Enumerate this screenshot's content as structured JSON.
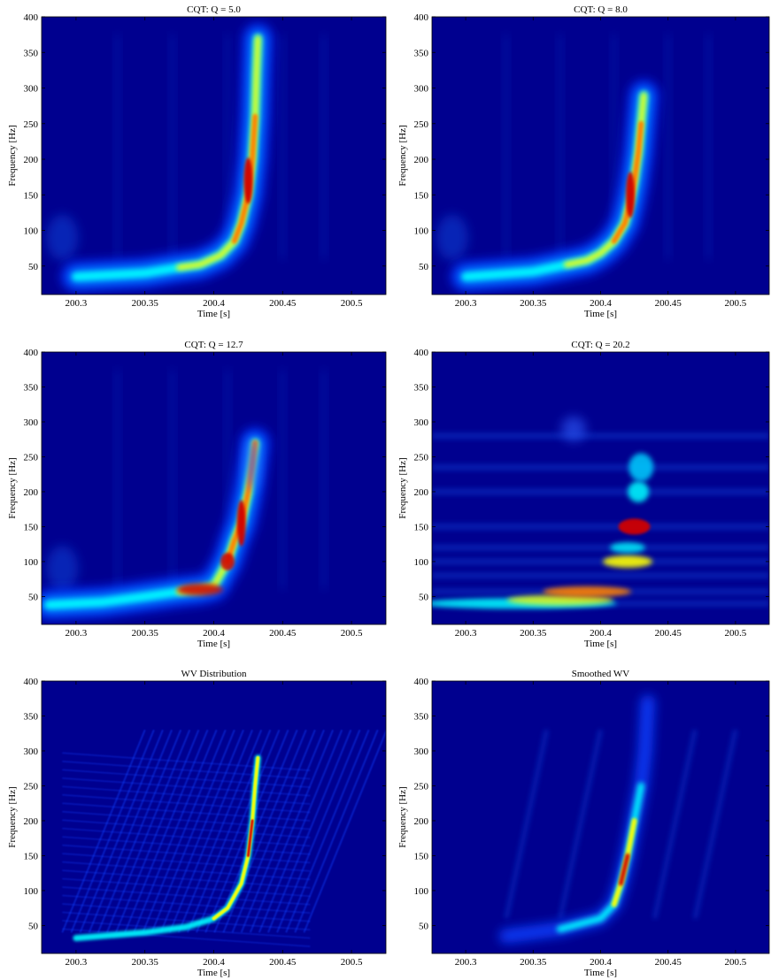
{
  "figure": {
    "xlabel": "Time [s]",
    "ylabel": "Frequency [Hz]"
  },
  "colors": {
    "colormap": "jet",
    "background": "#00008f",
    "axis": "#000000"
  },
  "chart_data": [
    {
      "type": "heatmap",
      "title": "CQT: Q = 5.0",
      "xlabel": "Time [s]",
      "ylabel": "Frequency [Hz]",
      "xlim": [
        200.275,
        200.525
      ],
      "ylim": [
        10,
        400
      ],
      "xticks": [
        200.3,
        200.35,
        200.4,
        200.45,
        200.5
      ],
      "yticks": [
        50,
        100,
        150,
        200,
        250,
        300,
        350,
        400
      ],
      "ridge": [
        [
          200.3,
          35
        ],
        [
          200.35,
          40
        ],
        [
          200.375,
          48
        ],
        [
          200.39,
          52
        ],
        [
          200.405,
          65
        ],
        [
          200.415,
          85
        ],
        [
          200.42,
          110
        ],
        [
          200.425,
          150
        ],
        [
          200.428,
          200
        ],
        [
          200.43,
          260
        ],
        [
          200.431,
          320
        ],
        [
          200.432,
          370
        ]
      ],
      "peak": {
        "time": 200.425,
        "frequency": 170
      }
    },
    {
      "type": "heatmap",
      "title": "CQT: Q = 8.0",
      "xlabel": "Time [s]",
      "ylabel": "Frequency [Hz]",
      "xlim": [
        200.275,
        200.525
      ],
      "ylim": [
        10,
        400
      ],
      "xticks": [
        200.3,
        200.35,
        200.4,
        200.45,
        200.5
      ],
      "yticks": [
        50,
        100,
        150,
        200,
        250,
        300,
        350,
        400
      ],
      "ridge": [
        [
          200.3,
          35
        ],
        [
          200.35,
          42
        ],
        [
          200.375,
          52
        ],
        [
          200.39,
          58
        ],
        [
          200.4,
          68
        ],
        [
          200.41,
          85
        ],
        [
          200.418,
          110
        ],
        [
          200.422,
          140
        ],
        [
          200.425,
          170
        ],
        [
          200.428,
          210
        ],
        [
          200.43,
          250
        ],
        [
          200.432,
          290
        ]
      ],
      "peak": {
        "time": 200.422,
        "frequency": 150
      }
    },
    {
      "type": "heatmap",
      "title": "CQT: Q = 12.7",
      "xlabel": "Time [s]",
      "ylabel": "Frequency [Hz]",
      "xlim": [
        200.275,
        200.525
      ],
      "ylim": [
        10,
        400
      ],
      "xticks": [
        200.3,
        200.35,
        200.4,
        200.45,
        200.5
      ],
      "yticks": [
        50,
        100,
        150,
        200,
        250,
        300,
        350,
        400
      ],
      "ridge": [
        [
          200.28,
          38
        ],
        [
          200.32,
          42
        ],
        [
          200.35,
          50
        ],
        [
          200.375,
          57
        ],
        [
          200.39,
          60
        ],
        [
          200.4,
          65
        ],
        [
          200.41,
          100
        ],
        [
          200.415,
          130
        ],
        [
          200.42,
          155
        ],
        [
          200.425,
          200
        ],
        [
          200.428,
          240
        ],
        [
          200.43,
          270
        ]
      ],
      "peak": {
        "time": 200.42,
        "frequency": 155
      }
    },
    {
      "type": "heatmap",
      "title": "CQT: Q = 20.2",
      "xlabel": "Time [s]",
      "ylabel": "Frequency [Hz]",
      "xlim": [
        200.275,
        200.525
      ],
      "ylim": [
        10,
        400
      ],
      "xticks": [
        200.3,
        200.35,
        200.4,
        200.45,
        200.5
      ],
      "yticks": [
        50,
        100,
        150,
        200,
        250,
        300,
        350,
        400
      ],
      "bands": [
        [
          200.39,
          57
        ],
        [
          200.42,
          100
        ],
        [
          200.425,
          150
        ],
        [
          200.428,
          200
        ],
        [
          200.43,
          235
        ]
      ],
      "peak": {
        "time": 200.425,
        "frequency": 150
      }
    },
    {
      "type": "heatmap",
      "title": "WV Distribution",
      "xlabel": "Time [s]",
      "ylabel": "Frequency [Hz]",
      "xlim": [
        200.275,
        200.525
      ],
      "ylim": [
        10,
        400
      ],
      "xticks": [
        200.3,
        200.35,
        200.4,
        200.45,
        200.5
      ],
      "yticks": [
        50,
        100,
        150,
        200,
        250,
        300,
        350,
        400
      ],
      "ridge": [
        [
          200.3,
          32
        ],
        [
          200.35,
          40
        ],
        [
          200.38,
          48
        ],
        [
          200.4,
          60
        ],
        [
          200.41,
          75
        ],
        [
          200.42,
          110
        ],
        [
          200.425,
          150
        ],
        [
          200.428,
          200
        ],
        [
          200.43,
          250
        ],
        [
          200.432,
          290
        ]
      ],
      "peak": {
        "time": 200.426,
        "frequency": 190
      }
    },
    {
      "type": "heatmap",
      "title": "Smoothed WV",
      "xlabel": "Time [s]",
      "ylabel": "Frequency [Hz]",
      "xlim": [
        200.275,
        200.525
      ],
      "ylim": [
        10,
        400
      ],
      "xticks": [
        200.3,
        200.35,
        200.4,
        200.45,
        200.5
      ],
      "yticks": [
        50,
        100,
        150,
        200,
        250,
        300,
        350,
        400
      ],
      "ridge": [
        [
          200.33,
          35
        ],
        [
          200.37,
          45
        ],
        [
          200.4,
          60
        ],
        [
          200.41,
          80
        ],
        [
          200.415,
          110
        ],
        [
          200.42,
          150
        ],
        [
          200.425,
          200
        ],
        [
          200.43,
          250
        ],
        [
          200.433,
          300
        ],
        [
          200.435,
          370
        ]
      ],
      "peak": {
        "time": 200.415,
        "frequency": 110
      }
    }
  ]
}
